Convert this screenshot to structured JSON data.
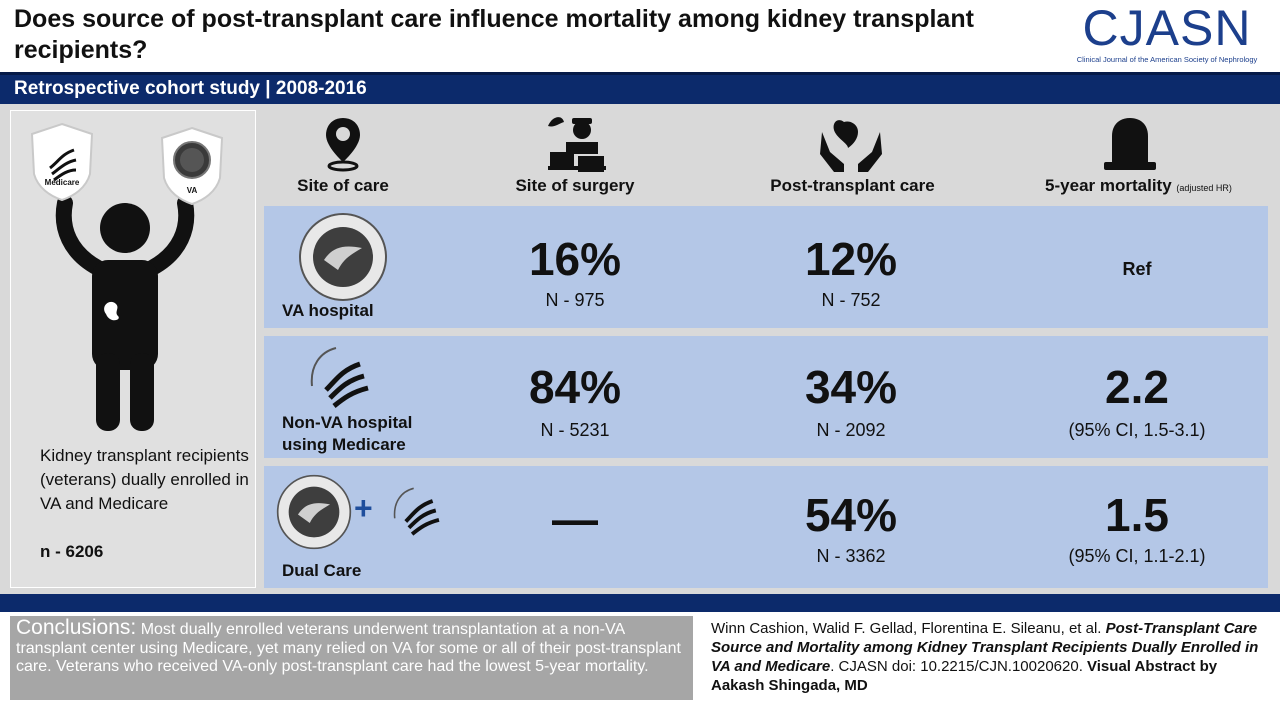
{
  "header": {
    "title": "Does source of post-transplant care influence mortality among kidney transplant recipients?",
    "logo_text": "CJASN",
    "logo_subtitle": "Clinical Journal of the American Society of Nephrology"
  },
  "study_band": "Retrospective cohort study | 2008-2016",
  "left": {
    "shield_medicare": "Medicare",
    "shield_va": "VA",
    "description": "Kidney transplant recipients (veterans) dually enrolled in VA and Medicare",
    "n": "n - 6206"
  },
  "columns": {
    "site_of_care": "Site of care",
    "site_of_surgery": "Site of surgery",
    "post_transplant_care": "Post-transplant care",
    "mortality": "5-year mortality",
    "mortality_note": "(adjusted HR)"
  },
  "rows": [
    {
      "label": "VA hospital",
      "surgery_pct": "16%",
      "surgery_n": "N - 975",
      "care_pct": "12%",
      "care_n": "N - 752",
      "hr": "Ref",
      "ci": ""
    },
    {
      "label": "Non-VA hospital using Medicare",
      "surgery_pct": "84%",
      "surgery_n": "N - 5231",
      "care_pct": "34%",
      "care_n": "N - 2092",
      "hr": "2.2",
      "ci": "(95% CI, 1.5-3.1)"
    },
    {
      "label": "Dual Care",
      "surgery_pct": "—",
      "surgery_n": "",
      "care_pct": "54%",
      "care_n": "N - 3362",
      "hr": "1.5",
      "ci": "(95% CI, 1.1-2.1)"
    }
  ],
  "plus_sign": "+",
  "conclusions": {
    "label": "Conclusions:",
    "text": "Most dually enrolled veterans underwent transplantation at a non-VA transplant center using Medicare, yet many relied on VA for some or all of their post-transplant care. Veterans who received VA-only post-transplant care had the lowest 5-year mortality."
  },
  "citation": {
    "authors": "Winn Cashion, Walid F. Gellad, Florentina E. Sileanu, et al.",
    "title": "Post-Transplant Care Source and Mortality among Kidney Transplant Recipients Dually Enrolled in VA and Medicare",
    "doi": ". CJASN doi: 10.2215/CJN.10020620.",
    "credit": "Visual Abstract by Aakash Shingada, MD"
  },
  "colors": {
    "navy": "#0c2a6b",
    "row_blue": "#b4c7e7",
    "panel_gray": "#d9d9d9",
    "logo_blue": "#1c3f8c"
  }
}
